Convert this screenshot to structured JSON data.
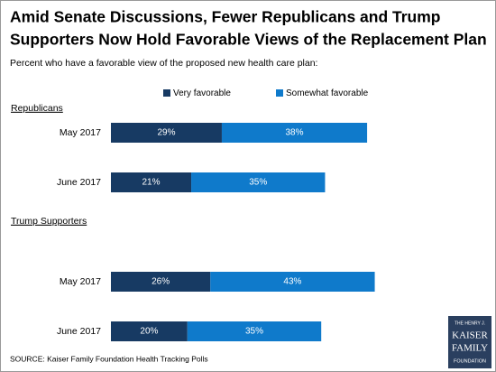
{
  "chart_data": {
    "type": "bar",
    "orientation": "horizontal",
    "stacked": true,
    "title": [
      "Amid Senate Discussions, Fewer Republicans and Trump",
      "Supporters Now Hold Favorable Views of the Replacement Plan"
    ],
    "subtitle": "Percent who have a favorable view of the proposed new health care plan:",
    "groups": [
      {
        "name": "Republicans",
        "categories": [
          "May 2017",
          "June 2017"
        ]
      },
      {
        "name": "Trump Supporters",
        "categories": [
          "May 2017",
          "June 2017"
        ]
      }
    ],
    "series": [
      {
        "name": "Very favorable",
        "color": "#173a63",
        "values": [
          29,
          21,
          26,
          20
        ],
        "value_labels": [
          "29%",
          "21%",
          "26%",
          "20%"
        ]
      },
      {
        "name": "Somewhat favorable",
        "color": "#0f7acb",
        "values": [
          38,
          35,
          43,
          35
        ],
        "value_labels": [
          "38%",
          "35%",
          "43%",
          "35%"
        ]
      }
    ],
    "source": "SOURCE: Kaiser Family Foundation Health Tracking Polls",
    "logo": [
      "THE HENRY J.",
      "KAISER",
      "FAMILY",
      "FOUNDATION"
    ]
  }
}
